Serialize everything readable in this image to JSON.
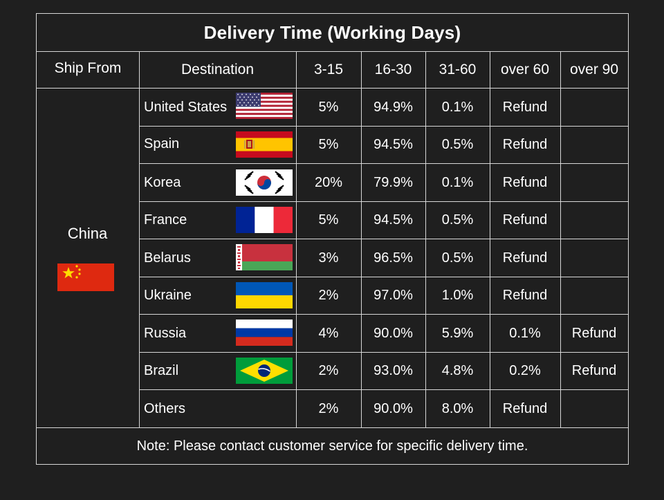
{
  "table": {
    "title": "Delivery Time (Working Days)",
    "headers": {
      "ship_from": "Ship From",
      "destination": "Destination",
      "c1": "3-15",
      "c2": "16-30",
      "c3": "31-60",
      "c4": "over 60",
      "c5": "over 90"
    },
    "ship_from": "China",
    "rows": [
      {
        "country": "United States",
        "c1": "5%",
        "c2": "94.9%",
        "c3": "0.1%",
        "c4": "Refund",
        "c5": ""
      },
      {
        "country": "Spain",
        "c1": "5%",
        "c2": "94.5%",
        "c3": "0.5%",
        "c4": "Refund",
        "c5": ""
      },
      {
        "country": "Korea",
        "c1": "20%",
        "c2": "79.9%",
        "c3": "0.1%",
        "c4": "Refund",
        "c5": ""
      },
      {
        "country": "France",
        "c1": "5%",
        "c2": "94.5%",
        "c3": "0.5%",
        "c4": "Refund",
        "c5": ""
      },
      {
        "country": "Belarus",
        "c1": "3%",
        "c2": "96.5%",
        "c3": "0.5%",
        "c4": "Refund",
        "c5": ""
      },
      {
        "country": "Ukraine",
        "c1": "2%",
        "c2": "97.0%",
        "c3": "1.0%",
        "c4": "Refund",
        "c5": ""
      },
      {
        "country": "Russia",
        "c1": "4%",
        "c2": "90.0%",
        "c3": "5.9%",
        "c4": "0.1%",
        "c5": "Refund"
      },
      {
        "country": "Brazil",
        "c1": "2%",
        "c2": "93.0%",
        "c3": "4.8%",
        "c4": "0.2%",
        "c5": "Refund"
      },
      {
        "country": "Others",
        "c1": "2%",
        "c2": "90.0%",
        "c3": "8.0%",
        "c4": "Refund",
        "c5": ""
      }
    ],
    "note": "Note: Please contact customer service for specific delivery time."
  },
  "colors": {
    "background": "#1f1f1f",
    "grid": "#d8d8d8",
    "text": "#ffffff"
  },
  "icons": [
    "us-flag-icon",
    "spain-flag-icon",
    "korea-flag-icon",
    "france-flag-icon",
    "belarus-flag-icon",
    "ukraine-flag-icon",
    "russia-flag-icon",
    "brazil-flag-icon",
    "china-flag-icon"
  ]
}
